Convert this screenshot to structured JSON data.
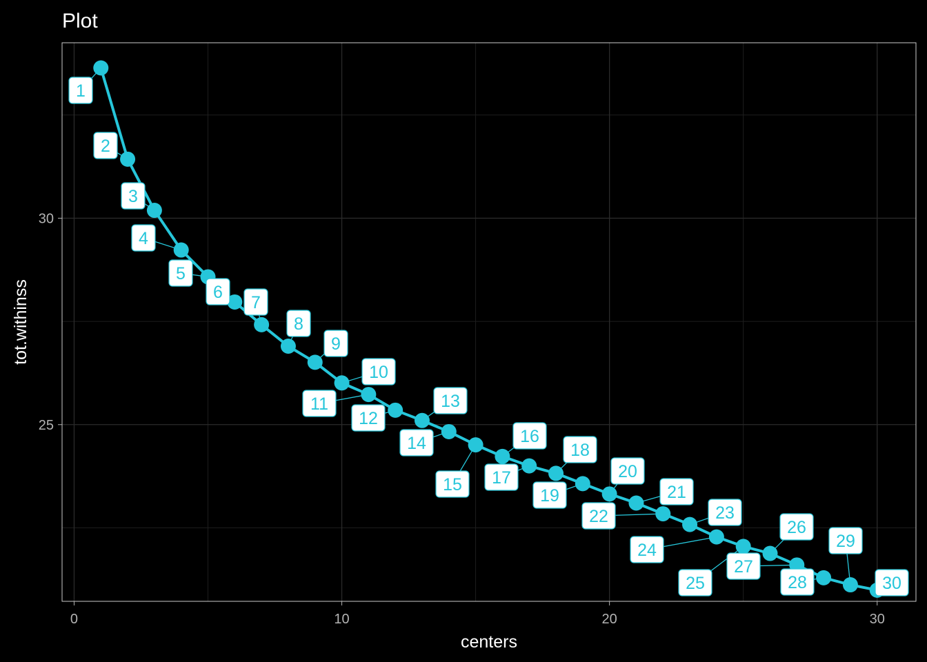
{
  "chart_data": {
    "type": "line",
    "title": "Plot",
    "xlabel": "centers",
    "ylabel": "tot.withinss",
    "xlim": [
      -0.45,
      31.45
    ],
    "ylim": [
      20.72,
      34.25
    ],
    "xticks": [
      0,
      10,
      20,
      30
    ],
    "xtick_labels": [
      "0",
      "10",
      "20",
      "30"
    ],
    "yticks": [
      25,
      30
    ],
    "ytick_labels": [
      "25",
      "30"
    ],
    "xminor": [
      5,
      15,
      25
    ],
    "yminor": [
      22.5,
      27.5,
      32.5
    ],
    "grid": true,
    "legend": "none",
    "series_color": "#26c6da",
    "background": "#000000",
    "x": [
      1,
      2,
      3,
      4,
      5,
      6,
      7,
      8,
      9,
      10,
      11,
      12,
      13,
      14,
      15,
      16,
      17,
      18,
      19,
      20,
      21,
      22,
      23,
      24,
      25,
      26,
      27,
      28,
      29,
      30
    ],
    "y": [
      33.64,
      31.43,
      30.19,
      29.23,
      28.58,
      27.97,
      27.42,
      26.9,
      26.51,
      26.01,
      25.73,
      25.35,
      25.1,
      24.83,
      24.51,
      24.23,
      24.0,
      23.82,
      23.57,
      23.32,
      23.1,
      22.84,
      22.58,
      22.28,
      22.05,
      21.88,
      21.6,
      21.29,
      21.12,
      20.99
    ],
    "labels": [
      "1",
      "2",
      "3",
      "4",
      "5",
      "6",
      "7",
      "8",
      "9",
      "10",
      "11",
      "12",
      "13",
      "14",
      "15",
      "16",
      "17",
      "18",
      "19",
      "20",
      "21",
      "22",
      "23",
      "24",
      "25",
      "26",
      "27",
      "28",
      "29",
      "30"
    ]
  }
}
